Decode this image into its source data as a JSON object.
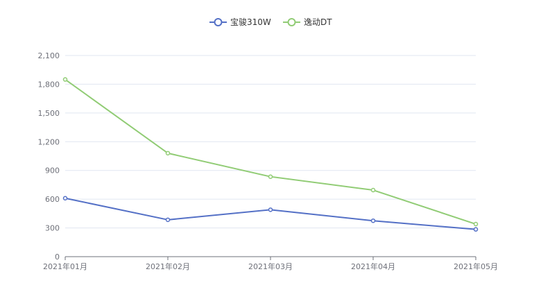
{
  "chart_data": {
    "type": "line",
    "x": [
      "2021年01月",
      "2021年02月",
      "2021年03月",
      "2021年04月",
      "2021年05月"
    ],
    "series": [
      {
        "name": "宝骏310W",
        "color": "#5470c6",
        "values": [
          610,
          385,
          490,
          375,
          285
        ]
      },
      {
        "name": "逸动DT",
        "color": "#91cc75",
        "values": [
          1850,
          1080,
          835,
          695,
          340
        ]
      }
    ],
    "ylim": [
      0,
      2100
    ],
    "yticks": [
      "0",
      "300",
      "600",
      "900",
      "1,200",
      "1,500",
      "1,800",
      "2,100"
    ],
    "grid": true,
    "legend_position": "top-center"
  }
}
